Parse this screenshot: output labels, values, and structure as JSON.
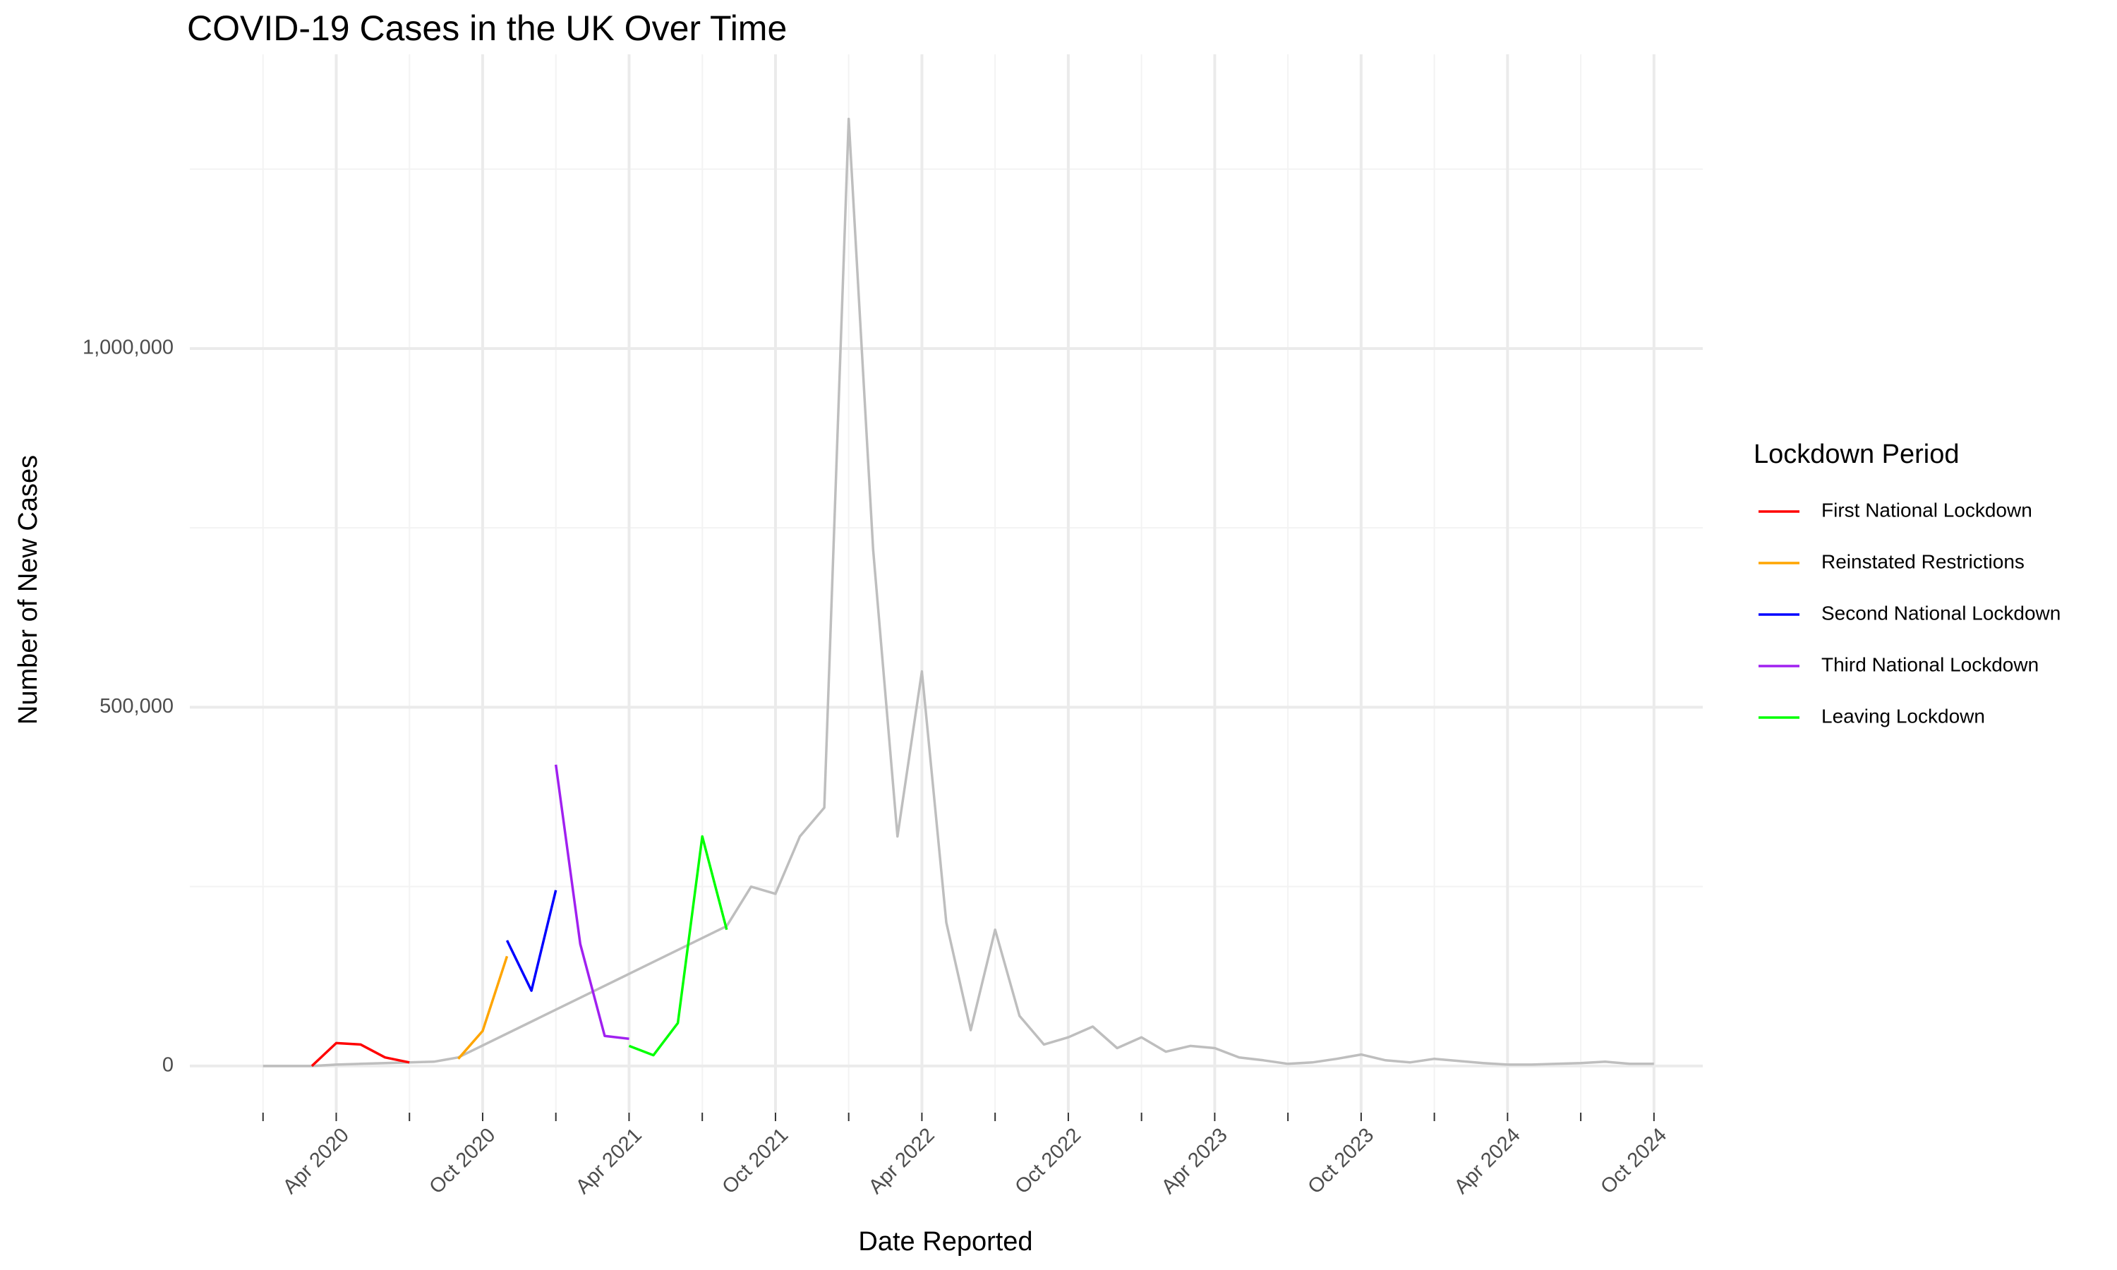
{
  "chart_data": {
    "type": "line",
    "title": "COVID-19 Cases in the UK Over Time",
    "x_label": "Date Reported",
    "y_label": "Number of New Cases",
    "legend_title": "Lockdown Period",
    "legend": "right",
    "grid": true,
    "xlim": [
      "2019-10",
      "2024-12"
    ],
    "xticks": [
      {
        "value": "2020-04",
        "label": "Apr 2020"
      },
      {
        "value": "2020-10",
        "label": "Oct 2020"
      },
      {
        "value": "2021-04",
        "label": "Apr 2021"
      },
      {
        "value": "2021-10",
        "label": "Oct 2021"
      },
      {
        "value": "2022-04",
        "label": "Apr 2022"
      },
      {
        "value": "2022-10",
        "label": "Oct 2022"
      },
      {
        "value": "2023-04",
        "label": "Apr 2023"
      },
      {
        "value": "2023-10",
        "label": "Oct 2023"
      },
      {
        "value": "2024-04",
        "label": "Apr 2024"
      },
      {
        "value": "2024-10",
        "label": "Oct 2024"
      }
    ],
    "xminor": [
      "2020-01",
      "2020-07",
      "2021-01",
      "2021-07",
      "2022-01",
      "2022-07",
      "2023-01",
      "2023-07",
      "2024-01",
      "2024-07"
    ],
    "ylim": [
      -65000,
      1410000
    ],
    "yticks": [
      0,
      {
        "value": 500000,
        "label": "500,000"
      },
      {
        "value": 1000000,
        "label": "1,000,000"
      }
    ],
    "yminor": [
      250000,
      750000,
      1250000
    ],
    "series": [
      {
        "color": "#bebebe",
        "x": [
          "2020-01",
          "2020-02",
          "2020-03",
          "2020-04",
          "2020-05",
          "2020-06",
          "2020-07",
          "2020-08",
          "2020-09",
          "2021-08",
          "2021-09",
          "2021-10",
          "2021-11",
          "2021-12",
          "2022-01",
          "2022-02",
          "2022-03",
          "2022-04",
          "2022-05",
          "2022-06",
          "2022-07",
          "2022-08",
          "2022-09",
          "2022-10",
          "2022-11",
          "2022-12",
          "2023-01",
          "2023-02",
          "2023-03",
          "2023-04",
          "2023-05",
          "2023-06",
          "2023-07",
          "2023-08",
          "2023-09",
          "2023-10",
          "2023-11",
          "2023-12",
          "2024-01",
          "2024-02",
          "2024-03",
          "2024-04",
          "2024-05",
          "2024-06",
          "2024-07",
          "2024-08",
          "2024-09",
          "2024-10"
        ],
        "values": [
          0,
          0,
          0,
          2000,
          3000,
          4000,
          5000,
          6000,
          12000,
          195000,
          250000,
          240000,
          320000,
          360000,
          1320000,
          720000,
          320000,
          550000,
          200000,
          50000,
          190000,
          70000,
          30000,
          40000,
          55000,
          25000,
          40000,
          20000,
          28000,
          25000,
          12000,
          8000,
          3000,
          5000,
          10000,
          16000,
          8000,
          5000,
          10000,
          7000,
          4000,
          2000,
          2000,
          3000,
          4000,
          6000,
          3000,
          3000
        ]
      },
      {
        "name": "First National Lockdown",
        "color": "#ff0000",
        "x": [
          "2020-03",
          "2020-04",
          "2020-05",
          "2020-06",
          "2020-07"
        ],
        "values": [
          0,
          32000,
          30000,
          12000,
          5000
        ]
      },
      {
        "name": "Reinstated Restrictions",
        "color": "#ffa500",
        "x": [
          "2020-09",
          "2020-10",
          "2020-11"
        ],
        "values": [
          10000,
          49000,
          153000
        ]
      },
      {
        "name": "Second National Lockdown",
        "color": "#0000ff",
        "x": [
          "2020-11",
          "2020-12",
          "2021-01"
        ],
        "values": [
          175000,
          105000,
          245000
        ]
      },
      {
        "name": "Third National Lockdown",
        "color": "#a020f0",
        "x": [
          "2021-01",
          "2021-02",
          "2021-03",
          "2021-04"
        ],
        "values": [
          420000,
          170000,
          42000,
          38000
        ]
      },
      {
        "name": "Leaving Lockdown",
        "color": "#00ff00",
        "x": [
          "2021-04",
          "2021-05",
          "2021-06",
          "2021-07",
          "2021-08"
        ],
        "values": [
          28000,
          15000,
          60000,
          320000,
          190000
        ]
      }
    ]
  }
}
